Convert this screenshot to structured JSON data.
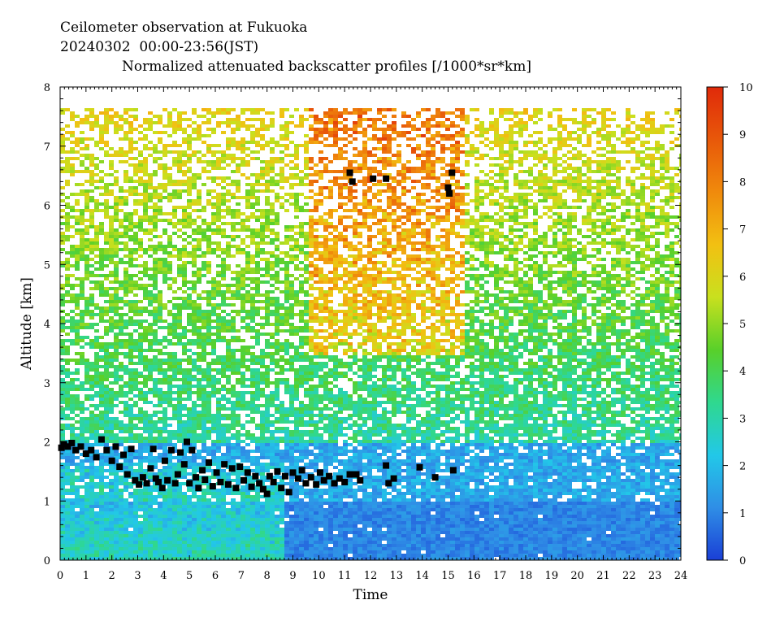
{
  "header": {
    "line1": "Ceilometer observation at Fukuoka",
    "line2": "20240302  00:00-23:56(JST)",
    "line3": "Normalized attenuated backscatter profiles [/1000*sr*km]"
  },
  "chart_data": {
    "type": "heatmap",
    "title": "Normalized attenuated backscatter profiles [/1000*sr*km]",
    "xlabel": "Time",
    "ylabel": "Altitude [km]",
    "xlim": [
      0,
      24
    ],
    "ylim": [
      0,
      8
    ],
    "x_ticks": [
      "0",
      "1",
      "2",
      "3",
      "4",
      "5",
      "6",
      "7",
      "8",
      "9",
      "10",
      "11",
      "12",
      "13",
      "14",
      "15",
      "16",
      "17",
      "18",
      "19",
      "20",
      "21",
      "22",
      "23",
      "24"
    ],
    "y_ticks": [
      "0",
      "1",
      "2",
      "3",
      "4",
      "5",
      "6",
      "7",
      "8"
    ],
    "colorbar": {
      "range": [
        0,
        10
      ],
      "ticks": [
        "0",
        "1",
        "2",
        "3",
        "4",
        "5",
        "6",
        "7",
        "8",
        "9",
        "10"
      ],
      "colors": [
        "#1a3fd6",
        "#2f8ee6",
        "#22c8e8",
        "#2fd88f",
        "#58d02a",
        "#c9e01e",
        "#f2c012",
        "#f08a0c",
        "#e8580a",
        "#e02a0a"
      ]
    },
    "data_top_km": 7.65,
    "cloud_base_markers": [
      [
        0.05,
        1.9
      ],
      [
        0.15,
        1.96
      ],
      [
        0.3,
        1.92
      ],
      [
        0.45,
        1.98
      ],
      [
        0.6,
        1.86
      ],
      [
        0.8,
        1.92
      ],
      [
        1.0,
        1.8
      ],
      [
        1.2,
        1.86
      ],
      [
        1.4,
        1.74
      ],
      [
        1.6,
        2.04
      ],
      [
        1.8,
        1.86
      ],
      [
        2.0,
        1.68
      ],
      [
        2.15,
        1.92
      ],
      [
        2.3,
        1.58
      ],
      [
        2.45,
        1.78
      ],
      [
        2.6,
        1.45
      ],
      [
        2.75,
        1.88
      ],
      [
        2.9,
        1.35
      ],
      [
        3.05,
        1.28
      ],
      [
        3.2,
        1.4
      ],
      [
        3.35,
        1.3
      ],
      [
        3.5,
        1.55
      ],
      [
        3.6,
        1.88
      ],
      [
        3.7,
        1.38
      ],
      [
        3.8,
        1.32
      ],
      [
        3.95,
        1.22
      ],
      [
        4.05,
        1.68
      ],
      [
        4.15,
        1.35
      ],
      [
        4.3,
        1.86
      ],
      [
        4.45,
        1.3
      ],
      [
        4.55,
        1.45
      ],
      [
        4.65,
        1.82
      ],
      [
        4.8,
        1.62
      ],
      [
        4.9,
        2.0
      ],
      [
        5.0,
        1.3
      ],
      [
        5.1,
        1.86
      ],
      [
        5.25,
        1.4
      ],
      [
        5.35,
        1.22
      ],
      [
        5.5,
        1.52
      ],
      [
        5.6,
        1.36
      ],
      [
        5.75,
        1.65
      ],
      [
        5.9,
        1.25
      ],
      [
        6.05,
        1.48
      ],
      [
        6.2,
        1.32
      ],
      [
        6.35,
        1.62
      ],
      [
        6.5,
        1.28
      ],
      [
        6.65,
        1.55
      ],
      [
        6.8,
        1.22
      ],
      [
        6.95,
        1.58
      ],
      [
        7.1,
        1.35
      ],
      [
        7.25,
        1.48
      ],
      [
        7.4,
        1.24
      ],
      [
        7.55,
        1.42
      ],
      [
        7.7,
        1.3
      ],
      [
        7.85,
        1.2
      ],
      [
        8.0,
        1.12
      ],
      [
        8.1,
        1.42
      ],
      [
        8.25,
        1.32
      ],
      [
        8.4,
        1.5
      ],
      [
        8.55,
        1.22
      ],
      [
        8.7,
        1.42
      ],
      [
        8.85,
        1.15
      ],
      [
        9.0,
        1.48
      ],
      [
        9.2,
        1.38
      ],
      [
        9.35,
        1.52
      ],
      [
        9.5,
        1.3
      ],
      [
        9.7,
        1.4
      ],
      [
        9.9,
        1.28
      ],
      [
        10.05,
        1.48
      ],
      [
        10.2,
        1.35
      ],
      [
        10.4,
        1.42
      ],
      [
        10.6,
        1.3
      ],
      [
        10.8,
        1.38
      ],
      [
        11.0,
        1.32
      ],
      [
        11.2,
        1.45
      ],
      [
        11.45,
        1.45
      ],
      [
        11.6,
        1.35
      ],
      [
        12.6,
        1.6
      ],
      [
        12.7,
        1.3
      ],
      [
        12.9,
        1.38
      ],
      [
        13.9,
        1.57
      ],
      [
        14.5,
        1.4
      ],
      [
        15.2,
        1.52
      ],
      [
        11.2,
        6.55
      ],
      [
        11.3,
        6.4
      ],
      [
        12.1,
        6.45
      ],
      [
        12.6,
        6.45
      ],
      [
        15.0,
        6.3
      ],
      [
        15.05,
        6.2
      ],
      [
        15.15,
        6.55
      ]
    ]
  }
}
